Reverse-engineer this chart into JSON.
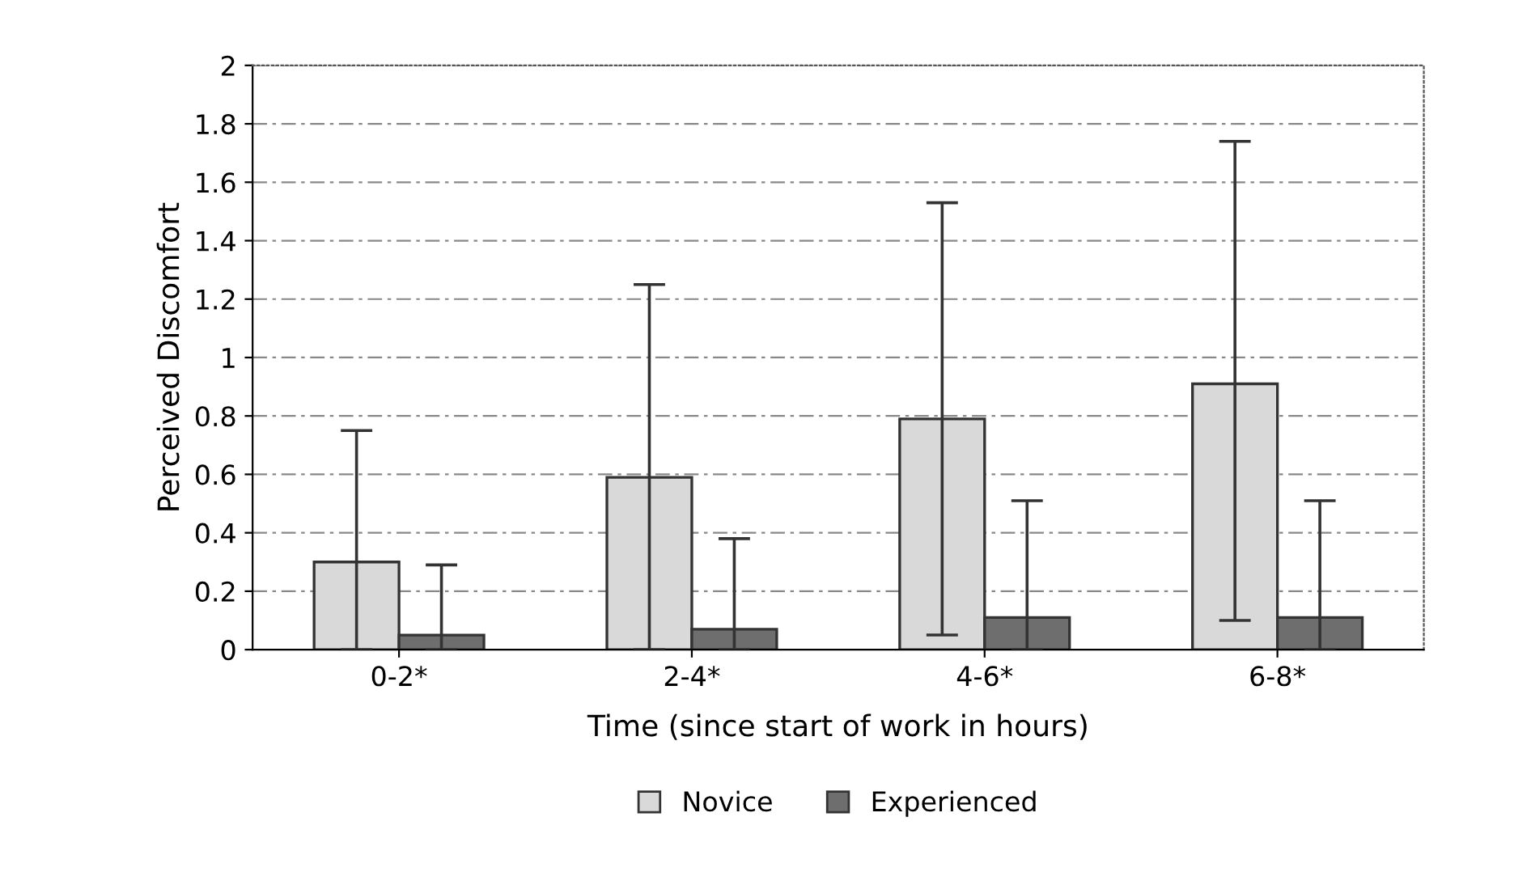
{
  "chart_data": {
    "type": "bar",
    "xlabel": "Time (since start of work in hours)",
    "ylabel": "Perceived Discomfort",
    "categories": [
      "0-2*",
      "2-4*",
      "4-6*",
      "6-8*"
    ],
    "series": [
      {
        "name": "Novice",
        "color": "#d9d9d9",
        "values": [
          0.3,
          0.59,
          0.79,
          0.91
        ],
        "errors": [
          [
            0,
            0.75
          ],
          [
            0,
            1.25
          ],
          [
            0.05,
            1.53
          ],
          [
            0.1,
            1.74
          ]
        ]
      },
      {
        "name": "Experienced",
        "color": "#6e6e6e",
        "values": [
          0.05,
          0.07,
          0.11,
          0.11
        ],
        "errors": [
          [
            0,
            0.29
          ],
          [
            0,
            0.38
          ],
          [
            0,
            0.51
          ],
          [
            0,
            0.51
          ]
        ]
      }
    ],
    "ylim": [
      0,
      2
    ],
    "yticks": [
      0,
      0.2,
      0.4,
      0.6,
      0.8,
      1,
      1.2,
      1.4,
      1.6,
      1.8,
      2
    ],
    "grid": "y",
    "legend": "bottom"
  }
}
